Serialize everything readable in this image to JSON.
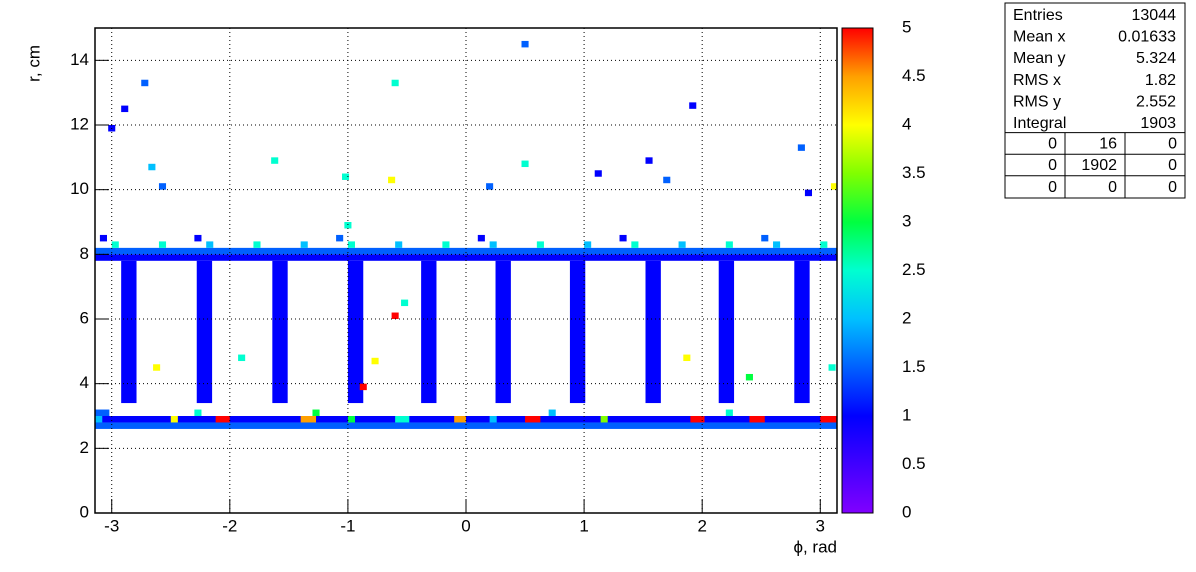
{
  "chart_data": {
    "type": "heatmap",
    "xlabel": "ϕ, rad",
    "ylabel": "r, cm",
    "xlim": [
      -3.1416,
      3.1416
    ],
    "ylim": [
      0,
      15
    ],
    "zlim": [
      0,
      5
    ],
    "xticks": [
      -3,
      -2,
      -1,
      0,
      1,
      2,
      3
    ],
    "yticks": [
      0,
      2,
      4,
      6,
      8,
      10,
      12,
      14
    ],
    "zticks": [
      0,
      0.5,
      1,
      1.5,
      2,
      2.5,
      3,
      3.5,
      4,
      4.5,
      5
    ],
    "grid": true,
    "palette": [
      "#8000ff",
      "#4000ff",
      "#0000ff",
      "#0060ff",
      "#00c0ff",
      "#00ffd0",
      "#00ff40",
      "#80ff00",
      "#ffff00",
      "#ffa000",
      "#ff0000"
    ],
    "cells": [
      [
        -3.1416,
        3.1416,
        2.6,
        2.8,
        1.5
      ],
      [
        -3.1416,
        3.1416,
        2.8,
        3.0,
        1
      ],
      [
        -3.1416,
        -3.08,
        2.8,
        3.0,
        2
      ],
      [
        -2.5,
        -2.44,
        2.8,
        3.0,
        4
      ],
      [
        -2.12,
        -2.0,
        2.8,
        3.0,
        5
      ],
      [
        -1.4,
        -1.27,
        2.8,
        3.0,
        4.5
      ],
      [
        -1.0,
        -0.94,
        2.8,
        3.0,
        3
      ],
      [
        -0.6,
        -0.48,
        2.8,
        3.0,
        2.5
      ],
      [
        -0.1,
        0.0,
        2.8,
        3.0,
        4.5
      ],
      [
        0.2,
        0.26,
        2.8,
        3.0,
        2
      ],
      [
        0.5,
        0.63,
        2.8,
        3.0,
        5
      ],
      [
        1.14,
        1.2,
        2.8,
        3.0,
        3.5
      ],
      [
        1.9,
        2.02,
        2.8,
        3.0,
        5
      ],
      [
        2.4,
        2.53,
        2.8,
        3.0,
        5
      ],
      [
        3.0,
        3.1416,
        2.8,
        3.0,
        5
      ],
      [
        -3.1416,
        -3.02,
        3.0,
        3.2,
        1.5
      ],
      [
        -2.3,
        -2.24,
        3.0,
        3.2,
        2.5
      ],
      [
        -1.3,
        -1.24,
        3.0,
        3.2,
        3
      ],
      [
        0.7,
        0.76,
        3.0,
        3.2,
        2
      ],
      [
        2.2,
        2.26,
        3.0,
        3.2,
        2.5
      ],
      [
        -2.92,
        -2.79,
        3.4,
        7.8,
        1
      ],
      [
        -2.28,
        -2.15,
        3.4,
        7.8,
        1
      ],
      [
        -1.64,
        -1.51,
        3.4,
        7.8,
        1
      ],
      [
        -1.0,
        -0.87,
        3.4,
        7.8,
        1
      ],
      [
        -0.38,
        -0.25,
        3.4,
        7.8,
        1
      ],
      [
        0.25,
        0.38,
        3.4,
        7.8,
        1
      ],
      [
        0.88,
        1.01,
        3.4,
        7.8,
        1
      ],
      [
        1.52,
        1.65,
        3.4,
        7.8,
        1
      ],
      [
        2.14,
        2.27,
        3.4,
        7.8,
        1
      ],
      [
        2.78,
        2.91,
        3.4,
        7.8,
        1
      ],
      [
        -3.1416,
        3.1416,
        7.8,
        8.0,
        1
      ],
      [
        -3.1416,
        3.1416,
        8.0,
        8.2,
        1.5
      ],
      [
        -3.0,
        -2.94,
        8.2,
        8.4,
        2.5
      ],
      [
        -2.6,
        -2.54,
        8.2,
        8.4,
        2.5
      ],
      [
        -2.2,
        -2.14,
        8.2,
        8.4,
        2
      ],
      [
        -1.8,
        -1.74,
        8.2,
        8.4,
        2.5
      ],
      [
        -1.4,
        -1.34,
        8.2,
        8.4,
        2
      ],
      [
        -1.0,
        -0.94,
        8.2,
        8.4,
        2.5
      ],
      [
        -0.6,
        -0.54,
        8.2,
        8.4,
        2
      ],
      [
        -0.2,
        -0.14,
        8.2,
        8.4,
        2.5
      ],
      [
        0.2,
        0.26,
        8.2,
        8.4,
        2
      ],
      [
        0.6,
        0.66,
        8.2,
        8.4,
        2.5
      ],
      [
        1.0,
        1.06,
        8.2,
        8.4,
        2
      ],
      [
        1.4,
        1.46,
        8.2,
        8.4,
        2.5
      ],
      [
        1.8,
        1.86,
        8.2,
        8.4,
        2
      ],
      [
        2.2,
        2.26,
        8.2,
        8.4,
        2.5
      ],
      [
        2.6,
        2.66,
        8.2,
        8.4,
        2
      ],
      [
        3.0,
        3.06,
        8.2,
        8.4,
        2.5
      ],
      [
        -3.1,
        -3.04,
        8.4,
        8.6,
        1
      ],
      [
        -2.3,
        -2.24,
        8.4,
        8.6,
        1
      ],
      [
        -1.1,
        -1.04,
        8.4,
        8.6,
        1.5
      ],
      [
        0.1,
        0.16,
        8.4,
        8.6,
        1
      ],
      [
        1.3,
        1.36,
        8.4,
        8.6,
        1
      ],
      [
        2.5,
        2.56,
        8.4,
        8.6,
        1.5
      ],
      [
        -3.03,
        -2.97,
        11.8,
        12.0,
        1
      ],
      [
        -2.92,
        -2.86,
        12.4,
        12.6,
        1
      ],
      [
        -2.75,
        -2.69,
        13.2,
        13.4,
        1.5
      ],
      [
        -2.69,
        -2.63,
        10.6,
        10.8,
        2
      ],
      [
        -2.6,
        -2.54,
        10.0,
        10.2,
        1.5
      ],
      [
        -1.65,
        -1.59,
        10.8,
        11.0,
        2.5
      ],
      [
        -1.05,
        -0.99,
        10.3,
        10.5,
        2.5
      ],
      [
        -0.63,
        -0.57,
        13.2,
        13.4,
        2.5
      ],
      [
        -0.66,
        -0.6,
        10.2,
        10.4,
        4
      ],
      [
        -1.03,
        -0.97,
        8.8,
        9.0,
        2.5
      ],
      [
        0.47,
        0.53,
        14.4,
        14.6,
        1.5
      ],
      [
        0.47,
        0.53,
        10.7,
        10.9,
        2.5
      ],
      [
        0.17,
        0.23,
        10.0,
        10.2,
        1.5
      ],
      [
        1.09,
        1.15,
        10.4,
        10.6,
        1
      ],
      [
        1.52,
        1.58,
        10.8,
        11.0,
        1
      ],
      [
        1.67,
        1.73,
        10.2,
        10.4,
        1.5
      ],
      [
        1.89,
        1.95,
        12.5,
        12.7,
        1
      ],
      [
        2.81,
        2.87,
        11.2,
        11.4,
        1.5
      ],
      [
        2.87,
        2.93,
        9.8,
        10.0,
        1
      ],
      [
        3.09,
        3.1416,
        10.0,
        10.2,
        4
      ],
      [
        -0.63,
        -0.57,
        6.0,
        6.2,
        5
      ],
      [
        -0.55,
        -0.49,
        6.4,
        6.6,
        2.5
      ],
      [
        -0.9,
        -0.84,
        3.8,
        4.0,
        5
      ],
      [
        -0.8,
        -0.74,
        4.6,
        4.8,
        4
      ],
      [
        1.84,
        1.9,
        4.7,
        4.9,
        4
      ],
      [
        3.07,
        3.13,
        4.4,
        4.6,
        2.5
      ],
      [
        2.37,
        2.43,
        4.1,
        4.3,
        3
      ],
      [
        -1.93,
        -1.87,
        4.7,
        4.9,
        2.5
      ],
      [
        -2.65,
        -2.59,
        4.4,
        4.6,
        4
      ]
    ],
    "stats": {
      "rows": [
        {
          "label": "Entries",
          "value": 13044
        },
        {
          "label": "Mean x",
          "value": 0.01633
        },
        {
          "label": "Mean y",
          "value": 5.324
        },
        {
          "label": "RMS x",
          "value": 1.82
        },
        {
          "label": "RMS y",
          "value": 2.552
        },
        {
          "label": "Integral",
          "value": 1903
        }
      ],
      "table": [
        [
          0,
          16,
          0
        ],
        [
          0,
          1902,
          0
        ],
        [
          0,
          0,
          0
        ]
      ]
    }
  }
}
